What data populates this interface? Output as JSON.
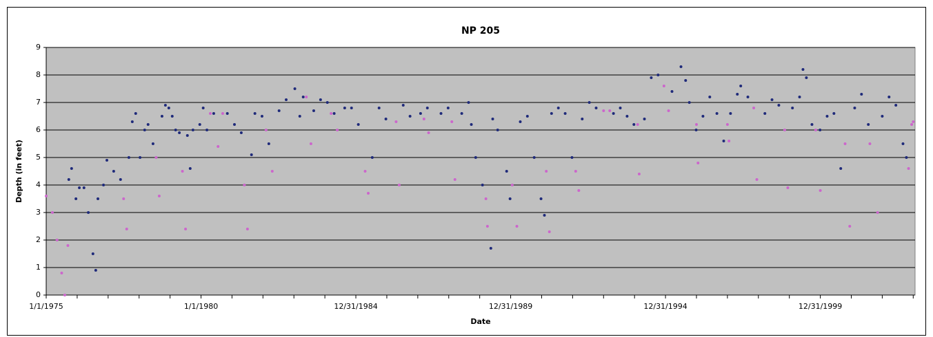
{
  "chart_data": {
    "type": "scatter",
    "title": "NP 205",
    "x_label": "Date",
    "y_label": "Depth (in feet)",
    "xlim": [
      1975,
      2003.06
    ],
    "xticks": [
      {
        "value": 1975,
        "label": "1/1/1975"
      },
      {
        "value": 1980,
        "label": "1/1/1980"
      },
      {
        "value": 1985,
        "label": "12/31/1984"
      },
      {
        "value": 1990,
        "label": "12/31/1989"
      },
      {
        "value": 1995,
        "label": "12/31/1994"
      },
      {
        "value": 2000,
        "label": "12/31/1999"
      }
    ],
    "xminorticks": [
      1976,
      1977,
      1978,
      1979,
      1981,
      1982,
      1983,
      1984,
      1986,
      1987,
      1988,
      1989,
      1991,
      1992,
      1993,
      1994,
      1996,
      1997,
      1998,
      1999,
      2001,
      2002,
      2003
    ],
    "ylim": [
      0,
      9
    ],
    "yticks": [
      0,
      1,
      2,
      3,
      4,
      5,
      6,
      7,
      8,
      9
    ],
    "grid": true,
    "plot_background": "#c0c0c0",
    "series": [
      {
        "color": "#1f2a7a",
        "x": [
          1975.73,
          1975.82,
          1975.96,
          1976.07,
          1976.22,
          1976.36,
          1976.51,
          1976.6,
          1976.67,
          1976.85,
          1976.96,
          1977.18,
          1977.4,
          1977.67,
          1977.78,
          1977.89,
          1978.03,
          1978.18,
          1978.29,
          1978.45,
          1978.74,
          1978.85,
          1978.96,
          1979.07,
          1979.18,
          1979.3,
          1979.56,
          1979.65,
          1979.74,
          1979.96,
          1980.07,
          1980.19,
          1980.41,
          1980.85,
          1981.08,
          1981.3,
          1981.63,
          1981.74,
          1981.97,
          1982.19,
          1982.52,
          1982.75,
          1983.03,
          1983.19,
          1983.3,
          1983.64,
          1983.86,
          1984.08,
          1984.3,
          1984.64,
          1984.86,
          1985.08,
          1985.53,
          1985.75,
          1985.97,
          1986.53,
          1986.75,
          1987.09,
          1987.31,
          1987.75,
          1987.98,
          1988.42,
          1988.64,
          1988.73,
          1988.87,
          1989.09,
          1989.36,
          1989.42,
          1989.58,
          1989.87,
          1989.98,
          1990.31,
          1990.54,
          1990.76,
          1990.98,
          1991.09,
          1991.32,
          1991.54,
          1991.76,
          1991.98,
          1992.31,
          1992.54,
          1992.76,
          1993.32,
          1993.54,
          1993.76,
          1993.98,
          1994.32,
          1994.54,
          1994.76,
          1995.21,
          1995.5,
          1995.65,
          1995.77,
          1995.99,
          1996.21,
          1996.43,
          1996.66,
          1996.88,
          1997.1,
          1997.32,
          1997.43,
          1997.66,
          1998.21,
          1998.44,
          1998.66,
          1999.1,
          1999.33,
          1999.44,
          1999.55,
          1999.73,
          1999.99,
          2000.22,
          2000.44,
          2000.66,
          2001.11,
          2001.33,
          2001.55,
          2002.0,
          2002.22,
          2002.44,
          2002.67,
          2002.78
        ],
        "values": [
          4.2,
          4.6,
          3.5,
          3.9,
          3.9,
          3.0,
          1.5,
          0.9,
          3.5,
          4.0,
          4.9,
          4.5,
          4.2,
          5.0,
          6.3,
          6.6,
          5.0,
          6.0,
          6.2,
          5.5,
          6.5,
          6.9,
          6.8,
          6.5,
          6.0,
          5.9,
          5.8,
          4.6,
          6.0,
          6.2,
          6.8,
          6.0,
          6.6,
          6.6,
          6.2,
          5.9,
          5.1,
          6.6,
          6.5,
          5.5,
          6.7,
          7.1,
          7.5,
          6.5,
          7.2,
          6.7,
          7.1,
          7.0,
          6.6,
          6.8,
          6.8,
          6.2,
          5.0,
          6.8,
          6.4,
          6.9,
          6.5,
          6.6,
          6.8,
          6.6,
          6.8,
          6.6,
          7.0,
          6.2,
          5.0,
          4.0,
          1.7,
          6.4,
          6.0,
          4.5,
          3.5,
          6.3,
          6.5,
          5.0,
          3.5,
          2.9,
          6.6,
          6.8,
          6.6,
          5.0,
          6.4,
          7.0,
          6.8,
          6.6,
          6.8,
          6.5,
          6.2,
          6.4,
          7.9,
          8.0,
          7.4,
          8.3,
          7.8,
          7.0,
          6.0,
          6.5,
          7.2,
          6.6,
          5.6,
          6.6,
          7.3,
          7.6,
          7.2,
          6.6,
          7.1,
          6.9,
          6.8,
          7.2,
          8.2,
          7.9,
          6.2,
          6.0,
          6.5,
          6.6,
          4.6,
          6.8,
          7.3,
          6.2,
          6.5,
          7.2,
          6.9,
          5.5,
          5.0
        ]
      },
      {
        "color": "#cc66cc",
        "x": [
          1975.0,
          1975.2,
          1975.35,
          1975.5,
          1975.6,
          1975.7,
          1977.5,
          1977.6,
          1978.55,
          1978.65,
          1979.4,
          1979.5,
          1980.3,
          1980.55,
          1980.7,
          1981.4,
          1981.5,
          1982.1,
          1982.3,
          1983.4,
          1983.55,
          1984.2,
          1984.4,
          1985.3,
          1985.4,
          1986.3,
          1986.4,
          1987.2,
          1987.35,
          1988.1,
          1988.2,
          1989.2,
          1989.25,
          1990.05,
          1990.2,
          1991.15,
          1991.25,
          1992.1,
          1992.2,
          1993.0,
          1993.2,
          1994.1,
          1994.15,
          1994.95,
          1995.1,
          1996.0,
          1996.05,
          1997.0,
          1997.05,
          1997.85,
          1997.95,
          1998.85,
          1998.95,
          1999.85,
          2000.0,
          2000.8,
          2000.95,
          2001.6,
          2001.85,
          2002.85,
          2002.95,
          2003.0
        ],
        "values": [
          3.6,
          3.0,
          2.0,
          0.8,
          0.0,
          1.8,
          3.5,
          2.4,
          5.0,
          3.6,
          4.5,
          2.4,
          6.6,
          5.4,
          6.6,
          4.0,
          2.4,
          6.0,
          4.5,
          7.2,
          5.5,
          6.6,
          6.0,
          4.5,
          3.7,
          6.3,
          4.0,
          6.4,
          5.9,
          6.3,
          4.2,
          3.5,
          2.5,
          4.0,
          2.5,
          4.5,
          2.3,
          4.5,
          3.8,
          6.7,
          6.7,
          6.2,
          4.4,
          7.6,
          6.7,
          6.2,
          4.8,
          6.2,
          5.6,
          6.8,
          4.2,
          6.0,
          3.9,
          6.0,
          3.8,
          5.5,
          2.5,
          5.5,
          3.0,
          4.6,
          6.2,
          6.3
        ]
      }
    ]
  }
}
